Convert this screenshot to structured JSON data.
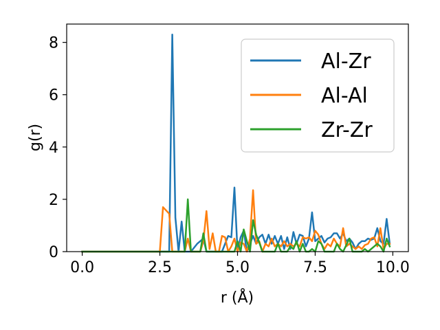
{
  "chart_data": {
    "type": "line",
    "xlabel": "r (Å)",
    "ylabel": "g(r)",
    "xlim": [
      -0.5,
      10.5
    ],
    "ylim": [
      0,
      8.7
    ],
    "xticks": [
      0.0,
      2.5,
      5.0,
      7.5,
      10.0
    ],
    "xtick_labels": [
      "0.0",
      "2.5",
      "5.0",
      "7.5",
      "10.0"
    ],
    "yticks": [
      0,
      2,
      4,
      6,
      8
    ],
    "ytick_labels": [
      "0",
      "2",
      "4",
      "6",
      "8"
    ],
    "grid": false,
    "legend_position": "top-right",
    "series": [
      {
        "name": "Al-Zr",
        "color": "#1f77b4",
        "points": [
          [
            0.0,
            0
          ],
          [
            2.6,
            0
          ],
          [
            2.8,
            0
          ],
          [
            2.9,
            8.3
          ],
          [
            3.0,
            1.3
          ],
          [
            3.1,
            0
          ],
          [
            3.2,
            1.15
          ],
          [
            3.3,
            0
          ],
          [
            3.5,
            0
          ],
          [
            3.7,
            0.3
          ],
          [
            3.9,
            0.5
          ],
          [
            4.0,
            0
          ],
          [
            4.2,
            0
          ],
          [
            4.5,
            0
          ],
          [
            4.7,
            0.6
          ],
          [
            4.8,
            0.55
          ],
          [
            4.9,
            2.45
          ],
          [
            5.0,
            0
          ],
          [
            5.1,
            0.55
          ],
          [
            5.2,
            0.8
          ],
          [
            5.3,
            0
          ],
          [
            5.5,
            0.6
          ],
          [
            5.6,
            0.3
          ],
          [
            5.7,
            0.55
          ],
          [
            5.8,
            0.65
          ],
          [
            5.9,
            0.3
          ],
          [
            6.0,
            0.65
          ],
          [
            6.1,
            0.3
          ],
          [
            6.2,
            0.6
          ],
          [
            6.3,
            0.3
          ],
          [
            6.4,
            0.6
          ],
          [
            6.5,
            0.1
          ],
          [
            6.6,
            0.55
          ],
          [
            6.7,
            0.1
          ],
          [
            6.8,
            0.75
          ],
          [
            6.9,
            0.3
          ],
          [
            7.0,
            0.65
          ],
          [
            7.1,
            0.6
          ],
          [
            7.2,
            0.2
          ],
          [
            7.3,
            0.5
          ],
          [
            7.4,
            1.5
          ],
          [
            7.5,
            0.4
          ],
          [
            7.6,
            0.5
          ],
          [
            7.7,
            0.6
          ],
          [
            7.8,
            0.35
          ],
          [
            7.9,
            0.5
          ],
          [
            8.0,
            0.55
          ],
          [
            8.1,
            0.7
          ],
          [
            8.2,
            0.7
          ],
          [
            8.3,
            0.5
          ],
          [
            8.4,
            0.7
          ],
          [
            8.5,
            0.4
          ],
          [
            8.6,
            0.5
          ],
          [
            8.7,
            0.35
          ],
          [
            8.8,
            0.1
          ],
          [
            8.9,
            0.3
          ],
          [
            9.0,
            0.4
          ],
          [
            9.1,
            0.4
          ],
          [
            9.2,
            0.5
          ],
          [
            9.3,
            0.45
          ],
          [
            9.4,
            0.5
          ],
          [
            9.5,
            0.9
          ],
          [
            9.6,
            0.4
          ],
          [
            9.7,
            0.3
          ],
          [
            9.8,
            1.25
          ],
          [
            9.9,
            0.3
          ]
        ]
      },
      {
        "name": "Al-Al",
        "color": "#ff7f0e",
        "points": [
          [
            0.0,
            0
          ],
          [
            2.5,
            0
          ],
          [
            2.6,
            1.7
          ],
          [
            2.8,
            1.45
          ],
          [
            2.9,
            0
          ],
          [
            3.3,
            0
          ],
          [
            3.4,
            0.5
          ],
          [
            3.5,
            0
          ],
          [
            3.8,
            0
          ],
          [
            3.9,
            0.4
          ],
          [
            4.0,
            1.55
          ],
          [
            4.1,
            0.1
          ],
          [
            4.2,
            0.7
          ],
          [
            4.3,
            0
          ],
          [
            4.4,
            0
          ],
          [
            4.5,
            0.6
          ],
          [
            4.6,
            0.55
          ],
          [
            4.7,
            0
          ],
          [
            4.8,
            0.2
          ],
          [
            4.9,
            0.5
          ],
          [
            5.0,
            0
          ],
          [
            5.1,
            0.35
          ],
          [
            5.2,
            0.3
          ],
          [
            5.3,
            0
          ],
          [
            5.4,
            0.5
          ],
          [
            5.5,
            2.35
          ],
          [
            5.6,
            0.3
          ],
          [
            5.7,
            0.4
          ],
          [
            5.8,
            0
          ],
          [
            5.9,
            0.3
          ],
          [
            6.0,
            0.2
          ],
          [
            6.1,
            0.5
          ],
          [
            6.2,
            0.2
          ],
          [
            6.3,
            0.3
          ],
          [
            6.4,
            0.2
          ],
          [
            6.5,
            0.4
          ],
          [
            6.6,
            0.2
          ],
          [
            6.7,
            0.3
          ],
          [
            6.8,
            0.2
          ],
          [
            6.9,
            0.3
          ],
          [
            7.0,
            0.2
          ],
          [
            7.1,
            0.55
          ],
          [
            7.2,
            0.5
          ],
          [
            7.3,
            0.55
          ],
          [
            7.4,
            0.4
          ],
          [
            7.5,
            0.8
          ],
          [
            7.6,
            0.65
          ],
          [
            7.7,
            0.3
          ],
          [
            7.8,
            0.1
          ],
          [
            7.9,
            0.3
          ],
          [
            8.0,
            0.2
          ],
          [
            8.1,
            0.5
          ],
          [
            8.2,
            0.3
          ],
          [
            8.3,
            0.2
          ],
          [
            8.4,
            0.9
          ],
          [
            8.5,
            0.2
          ],
          [
            8.6,
            0.3
          ],
          [
            8.7,
            0.2
          ],
          [
            8.8,
            0.1
          ],
          [
            8.9,
            0.2
          ],
          [
            9.0,
            0.1
          ],
          [
            9.1,
            0.25
          ],
          [
            9.2,
            0.3
          ],
          [
            9.3,
            0.5
          ],
          [
            9.4,
            0.55
          ],
          [
            9.5,
            0.2
          ],
          [
            9.6,
            0.9
          ],
          [
            9.7,
            0.1
          ],
          [
            9.8,
            0.3
          ],
          [
            9.9,
            0.3
          ]
        ]
      },
      {
        "name": "Zr-Zr",
        "color": "#2ca02c",
        "points": [
          [
            0.0,
            0
          ],
          [
            3.3,
            0
          ],
          [
            3.4,
            2.0
          ],
          [
            3.5,
            0
          ],
          [
            3.8,
            0
          ],
          [
            3.9,
            0.7
          ],
          [
            4.0,
            0
          ],
          [
            4.9,
            0
          ],
          [
            5.0,
            0.4
          ],
          [
            5.1,
            0
          ],
          [
            5.2,
            0.85
          ],
          [
            5.3,
            0.4
          ],
          [
            5.4,
            0
          ],
          [
            5.5,
            1.2
          ],
          [
            5.6,
            0.65
          ],
          [
            5.7,
            0.35
          ],
          [
            5.8,
            0
          ],
          [
            6.2,
            0
          ],
          [
            6.3,
            0.3
          ],
          [
            6.4,
            0
          ],
          [
            6.6,
            0
          ],
          [
            6.7,
            0.2
          ],
          [
            6.8,
            0.1
          ],
          [
            6.9,
            0.4
          ],
          [
            7.0,
            0
          ],
          [
            7.1,
            0.3
          ],
          [
            7.2,
            0
          ],
          [
            7.3,
            0
          ],
          [
            7.4,
            0.1
          ],
          [
            7.5,
            0
          ],
          [
            7.6,
            0.4
          ],
          [
            7.7,
            0.3
          ],
          [
            7.8,
            0
          ],
          [
            8.1,
            0
          ],
          [
            8.2,
            0.3
          ],
          [
            8.3,
            0.1
          ],
          [
            8.4,
            0
          ],
          [
            8.6,
            0.5
          ],
          [
            8.7,
            0
          ],
          [
            9.0,
            0
          ],
          [
            9.1,
            0.1
          ],
          [
            9.2,
            0
          ],
          [
            9.4,
            0.2
          ],
          [
            9.5,
            0.3
          ],
          [
            9.6,
            0.2
          ],
          [
            9.7,
            0
          ],
          [
            9.8,
            0.5
          ],
          [
            9.9,
            0.2
          ]
        ]
      }
    ]
  }
}
